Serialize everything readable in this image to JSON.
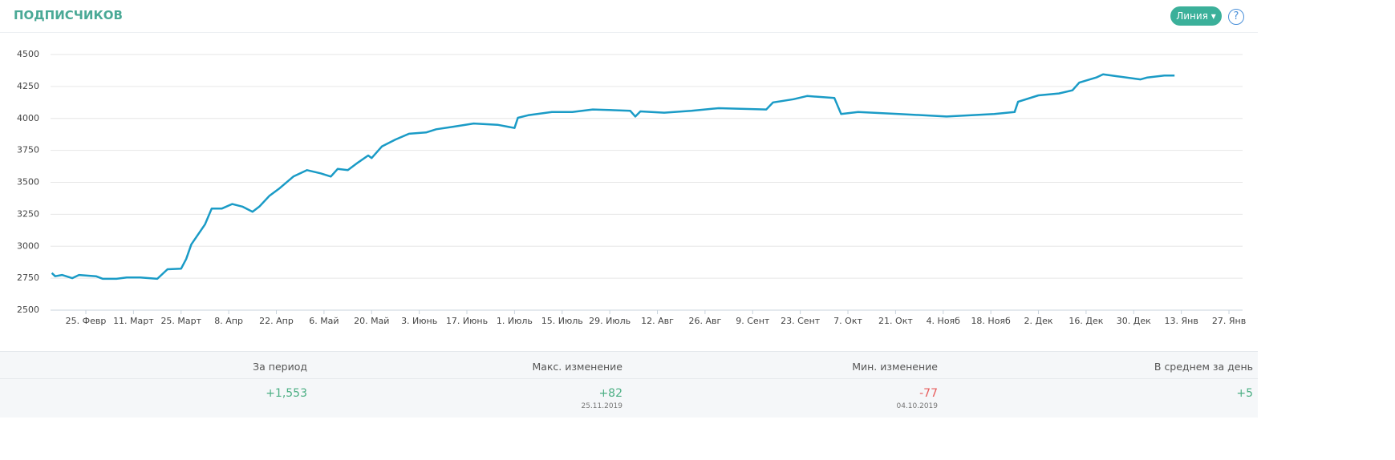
{
  "header": {
    "title": "ПОДПИСЧИКОВ",
    "button": "Линия",
    "help": "?"
  },
  "chart_data": {
    "type": "line",
    "color": "#1a9bc6",
    "grid": true,
    "x": [
      0,
      1,
      3,
      6,
      8,
      13,
      15,
      19,
      22,
      26,
      31,
      34,
      38,
      39.5,
      41,
      45,
      47,
      50,
      53,
      56,
      59,
      61,
      64,
      67,
      71,
      75,
      79,
      82,
      84,
      87,
      90,
      93,
      94,
      97,
      101,
      105,
      110,
      113,
      118,
      124,
      131,
      136,
      137,
      140,
      147,
      153,
      159,
      170,
      171.5,
      173,
      180,
      188,
      196,
      210,
      212,
      218,
      222,
      230,
      232,
      237,
      249,
      263,
      277,
      283,
      284,
      290,
      296,
      300,
      302,
      307,
      309,
      313,
      320,
      322,
      327,
      330
    ],
    "values": [
      2790,
      2765,
      2775,
      2750,
      2775,
      2765,
      2745,
      2745,
      2755,
      2755,
      2745,
      2820,
      2825,
      2900,
      3015,
      3170,
      3295,
      3295,
      3330,
      3310,
      3270,
      3310,
      3395,
      3455,
      3545,
      3595,
      3570,
      3545,
      3605,
      3595,
      3655,
      3710,
      3690,
      3780,
      3835,
      3880,
      3890,
      3915,
      3935,
      3960,
      3950,
      3925,
      4005,
      4025,
      4050,
      4050,
      4070,
      4060,
      4015,
      4055,
      4045,
      4060,
      4080,
      4070,
      4125,
      4150,
      4175,
      4160,
      4035,
      4050,
      4035,
      4015,
      4035,
      4050,
      4130,
      4180,
      4195,
      4220,
      4280,
      4320,
      4345,
      4330,
      4305,
      4320,
      4335,
      4335
    ],
    "xlim": [
      0,
      350
    ],
    "xticks": [
      {
        "value": 10,
        "label": "25. Февр"
      },
      {
        "value": 24,
        "label": "11. Март"
      },
      {
        "value": 38,
        "label": "25. Март"
      },
      {
        "value": 52,
        "label": "8. Апр"
      },
      {
        "value": 66,
        "label": "22. Апр"
      },
      {
        "value": 80,
        "label": "6. Май"
      },
      {
        "value": 94,
        "label": "20. Май"
      },
      {
        "value": 108,
        "label": "3. Июнь"
      },
      {
        "value": 122,
        "label": "17. Июнь"
      },
      {
        "value": 136,
        "label": "1. Июль"
      },
      {
        "value": 150,
        "label": "15. Июль"
      },
      {
        "value": 164,
        "label": "29. Июль"
      },
      {
        "value": 178,
        "label": "12. Авг"
      },
      {
        "value": 192,
        "label": "26. Авг"
      },
      {
        "value": 206,
        "label": "9. Сент"
      },
      {
        "value": 220,
        "label": "23. Сент"
      },
      {
        "value": 234,
        "label": "7. Окт"
      },
      {
        "value": 248,
        "label": "21. Окт"
      },
      {
        "value": 262,
        "label": "4. Нояб"
      },
      {
        "value": 276,
        "label": "18. Нояб"
      },
      {
        "value": 290,
        "label": "2. Дек"
      },
      {
        "value": 304,
        "label": "16. Дек"
      },
      {
        "value": 318,
        "label": "30. Дек"
      },
      {
        "value": 332,
        "label": "13. Янв"
      },
      {
        "value": 346,
        "label": "27. Янв"
      }
    ],
    "ylim": [
      2500,
      4500
    ],
    "yticks": [
      2500,
      2750,
      3000,
      3250,
      3500,
      3750,
      4000,
      4250,
      4500
    ]
  },
  "stats": [
    {
      "label": "За период",
      "value": "+1,553",
      "color": "#4caf84"
    },
    {
      "label": "Макс. изменение",
      "value": "+82",
      "date": "25.11.2019",
      "color": "#4caf84"
    },
    {
      "label": "Мин. изменение",
      "value": "-77",
      "date": "04.10.2019",
      "color": "#e85c5c"
    },
    {
      "label": "В среднем за день",
      "value": "+5",
      "color": "#4caf84"
    }
  ]
}
